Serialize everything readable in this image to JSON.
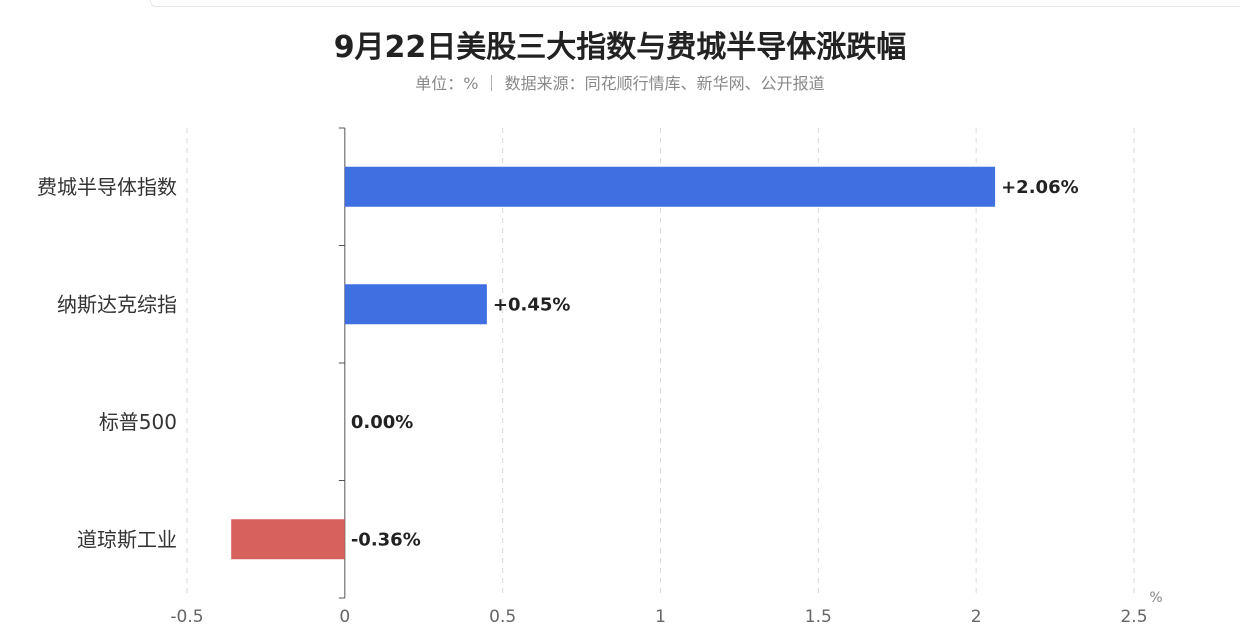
{
  "header": {
    "title": "9月22日美股三大指数与费城半导体涨跌幅",
    "subtitle": "单位：% ｜ 数据来源：同花顺行情库、新华网、公开报道"
  },
  "colors": {
    "positive": "#3f6fe0",
    "negative": "#d6625e",
    "grid": "#d9d9d9",
    "axis": "#555555"
  },
  "chart_data": {
    "type": "bar",
    "orientation": "horizontal",
    "title": "9月22日美股三大指数与费城半导体涨跌幅",
    "subtitle": "单位：% ｜ 数据来源：同花顺行情库、新华网、公开报道",
    "categories": [
      "费城半导体指数",
      "纳斯达克综指",
      "标普500",
      "道琼斯工业"
    ],
    "values": [
      2.06,
      0.45,
      0.0,
      -0.36
    ],
    "data_labels": [
      "+2.06%",
      "+0.45%",
      "0.00%",
      "-0.36%"
    ],
    "xlim": [
      -0.5,
      2.5
    ],
    "xticks": [
      -0.5,
      0,
      0.5,
      1,
      1.5,
      2,
      2.5
    ],
    "xtick_labels": [
      "-0.5",
      "0",
      "0.5",
      "1",
      "1.5",
      "2",
      "2.5"
    ],
    "xunit": "%",
    "grid": "vertical-dashed",
    "legend": "none"
  }
}
